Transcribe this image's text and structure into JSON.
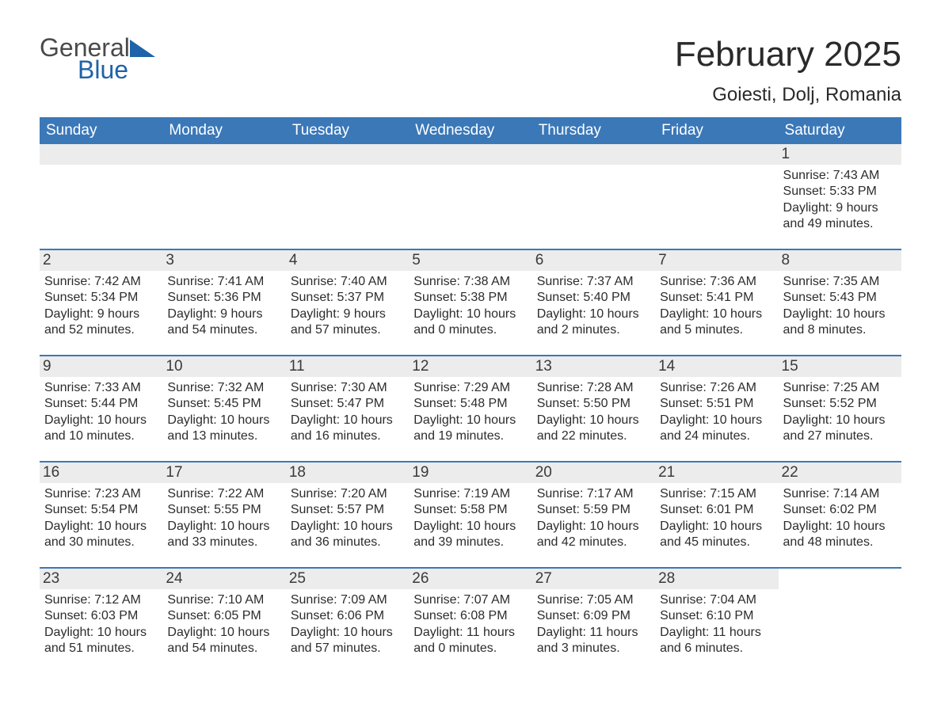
{
  "brand": {
    "word1": "General",
    "word2": "Blue"
  },
  "title": "February 2025",
  "location": "Goiesti, Dolj, Romania",
  "colors": {
    "header_bg": "#3b78b8",
    "header_text": "#ffffff",
    "daybar_bg": "#ececec",
    "page_bg": "#ffffff",
    "text": "#2c2c2c",
    "logo_gray": "#4a4a4a",
    "logo_blue": "#1f63a8"
  },
  "typography": {
    "title_fontsize": 44,
    "location_fontsize": 24,
    "header_fontsize": 19,
    "daynum_fontsize": 19,
    "body_fontsize": 16
  },
  "layout": {
    "columns": 7,
    "week_divider_color": "#3b78b8",
    "week_divider_width": 2
  },
  "weekdays": [
    "Sunday",
    "Monday",
    "Tuesday",
    "Wednesday",
    "Thursday",
    "Friday",
    "Saturday"
  ],
  "weeks": [
    [
      null,
      null,
      null,
      null,
      null,
      null,
      {
        "n": "1",
        "sr": "Sunrise: 7:43 AM",
        "ss": "Sunset: 5:33 PM",
        "dl": "Daylight: 9 hours and 49 minutes."
      }
    ],
    [
      {
        "n": "2",
        "sr": "Sunrise: 7:42 AM",
        "ss": "Sunset: 5:34 PM",
        "dl": "Daylight: 9 hours and 52 minutes."
      },
      {
        "n": "3",
        "sr": "Sunrise: 7:41 AM",
        "ss": "Sunset: 5:36 PM",
        "dl": "Daylight: 9 hours and 54 minutes."
      },
      {
        "n": "4",
        "sr": "Sunrise: 7:40 AM",
        "ss": "Sunset: 5:37 PM",
        "dl": "Daylight: 9 hours and 57 minutes."
      },
      {
        "n": "5",
        "sr": "Sunrise: 7:38 AM",
        "ss": "Sunset: 5:38 PM",
        "dl": "Daylight: 10 hours and 0 minutes."
      },
      {
        "n": "6",
        "sr": "Sunrise: 7:37 AM",
        "ss": "Sunset: 5:40 PM",
        "dl": "Daylight: 10 hours and 2 minutes."
      },
      {
        "n": "7",
        "sr": "Sunrise: 7:36 AM",
        "ss": "Sunset: 5:41 PM",
        "dl": "Daylight: 10 hours and 5 minutes."
      },
      {
        "n": "8",
        "sr": "Sunrise: 7:35 AM",
        "ss": "Sunset: 5:43 PM",
        "dl": "Daylight: 10 hours and 8 minutes."
      }
    ],
    [
      {
        "n": "9",
        "sr": "Sunrise: 7:33 AM",
        "ss": "Sunset: 5:44 PM",
        "dl": "Daylight: 10 hours and 10 minutes."
      },
      {
        "n": "10",
        "sr": "Sunrise: 7:32 AM",
        "ss": "Sunset: 5:45 PM",
        "dl": "Daylight: 10 hours and 13 minutes."
      },
      {
        "n": "11",
        "sr": "Sunrise: 7:30 AM",
        "ss": "Sunset: 5:47 PM",
        "dl": "Daylight: 10 hours and 16 minutes."
      },
      {
        "n": "12",
        "sr": "Sunrise: 7:29 AM",
        "ss": "Sunset: 5:48 PM",
        "dl": "Daylight: 10 hours and 19 minutes."
      },
      {
        "n": "13",
        "sr": "Sunrise: 7:28 AM",
        "ss": "Sunset: 5:50 PM",
        "dl": "Daylight: 10 hours and 22 minutes."
      },
      {
        "n": "14",
        "sr": "Sunrise: 7:26 AM",
        "ss": "Sunset: 5:51 PM",
        "dl": "Daylight: 10 hours and 24 minutes."
      },
      {
        "n": "15",
        "sr": "Sunrise: 7:25 AM",
        "ss": "Sunset: 5:52 PM",
        "dl": "Daylight: 10 hours and 27 minutes."
      }
    ],
    [
      {
        "n": "16",
        "sr": "Sunrise: 7:23 AM",
        "ss": "Sunset: 5:54 PM",
        "dl": "Daylight: 10 hours and 30 minutes."
      },
      {
        "n": "17",
        "sr": "Sunrise: 7:22 AM",
        "ss": "Sunset: 5:55 PM",
        "dl": "Daylight: 10 hours and 33 minutes."
      },
      {
        "n": "18",
        "sr": "Sunrise: 7:20 AM",
        "ss": "Sunset: 5:57 PM",
        "dl": "Daylight: 10 hours and 36 minutes."
      },
      {
        "n": "19",
        "sr": "Sunrise: 7:19 AM",
        "ss": "Sunset: 5:58 PM",
        "dl": "Daylight: 10 hours and 39 minutes."
      },
      {
        "n": "20",
        "sr": "Sunrise: 7:17 AM",
        "ss": "Sunset: 5:59 PM",
        "dl": "Daylight: 10 hours and 42 minutes."
      },
      {
        "n": "21",
        "sr": "Sunrise: 7:15 AM",
        "ss": "Sunset: 6:01 PM",
        "dl": "Daylight: 10 hours and 45 minutes."
      },
      {
        "n": "22",
        "sr": "Sunrise: 7:14 AM",
        "ss": "Sunset: 6:02 PM",
        "dl": "Daylight: 10 hours and 48 minutes."
      }
    ],
    [
      {
        "n": "23",
        "sr": "Sunrise: 7:12 AM",
        "ss": "Sunset: 6:03 PM",
        "dl": "Daylight: 10 hours and 51 minutes."
      },
      {
        "n": "24",
        "sr": "Sunrise: 7:10 AM",
        "ss": "Sunset: 6:05 PM",
        "dl": "Daylight: 10 hours and 54 minutes."
      },
      {
        "n": "25",
        "sr": "Sunrise: 7:09 AM",
        "ss": "Sunset: 6:06 PM",
        "dl": "Daylight: 10 hours and 57 minutes."
      },
      {
        "n": "26",
        "sr": "Sunrise: 7:07 AM",
        "ss": "Sunset: 6:08 PM",
        "dl": "Daylight: 11 hours and 0 minutes."
      },
      {
        "n": "27",
        "sr": "Sunrise: 7:05 AM",
        "ss": "Sunset: 6:09 PM",
        "dl": "Daylight: 11 hours and 3 minutes."
      },
      {
        "n": "28",
        "sr": "Sunrise: 7:04 AM",
        "ss": "Sunset: 6:10 PM",
        "dl": "Daylight: 11 hours and 6 minutes."
      },
      null
    ]
  ]
}
